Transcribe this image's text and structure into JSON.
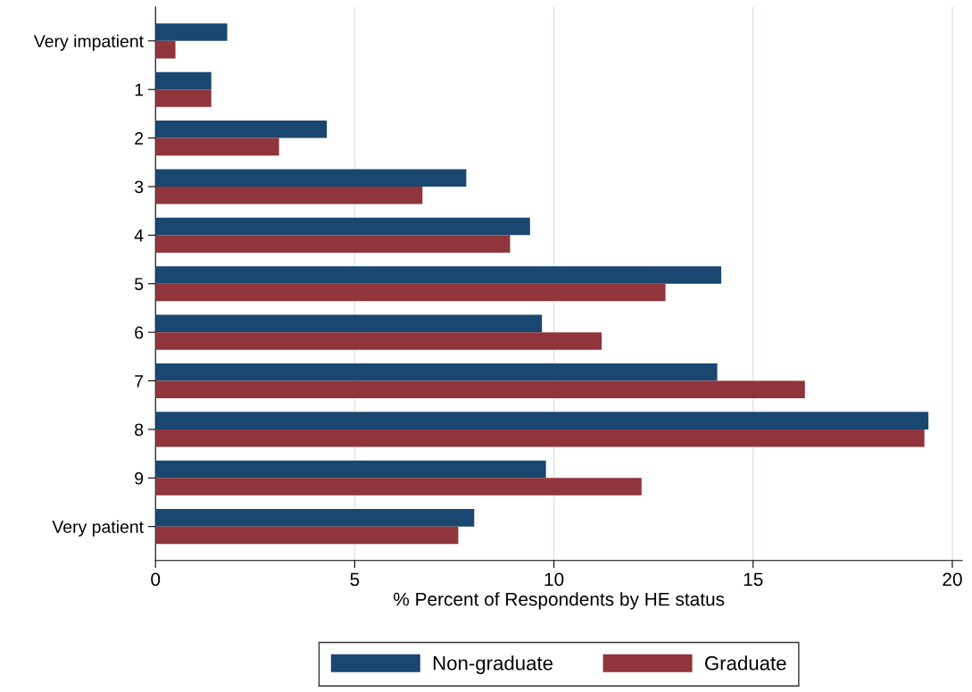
{
  "chart_data": {
    "type": "bar",
    "orientation": "horizontal",
    "xlabel": "% Percent of Respondents by HE status",
    "categories": [
      "Very impatient",
      "1",
      "2",
      "3",
      "4",
      "5",
      "6",
      "7",
      "8",
      "9",
      "Very patient"
    ],
    "series": [
      {
        "name": "Non-graduate",
        "color": "#1a476f",
        "values": [
          1.8,
          1.4,
          4.3,
          7.8,
          9.4,
          14.2,
          9.7,
          14.1,
          19.4,
          9.8,
          8.0
        ]
      },
      {
        "name": "Graduate",
        "color": "#90353b",
        "values": [
          0.5,
          1.4,
          3.1,
          6.7,
          8.9,
          12.8,
          11.2,
          16.3,
          19.3,
          12.2,
          7.6
        ]
      }
    ],
    "xlim": [
      0,
      20.25
    ],
    "xticks": [
      0,
      5,
      10,
      15,
      20
    ],
    "grid": "x",
    "legend": "bottom"
  }
}
